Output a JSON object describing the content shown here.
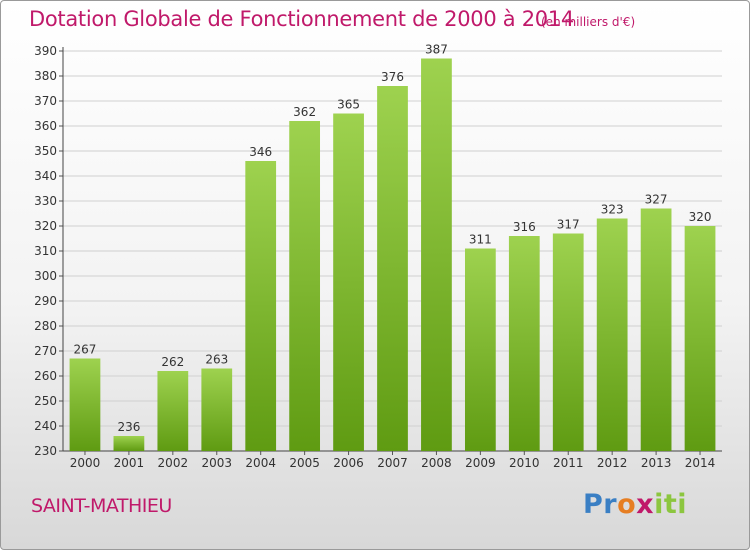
{
  "title": "Dotation Globale de Fonctionnement de 2000 à 2014",
  "subtitle": "(en milliers d'€)",
  "commune": "SAINT-MATHIEU",
  "logo": {
    "text": "Proxiti",
    "parts": [
      "Pr",
      "o",
      "x",
      "iti"
    ]
  },
  "colors": {
    "title": "#c0196a",
    "bar_top": "#9ed24f",
    "bar_bottom": "#5f9b12",
    "grid": "#d0d0d0"
  },
  "chart_data": {
    "type": "bar",
    "categories": [
      "2000",
      "2001",
      "2002",
      "2003",
      "2004",
      "2005",
      "2006",
      "2007",
      "2008",
      "2009",
      "2010",
      "2011",
      "2012",
      "2013",
      "2014"
    ],
    "values": [
      267,
      236,
      262,
      263,
      346,
      362,
      365,
      376,
      387,
      311,
      316,
      317,
      323,
      327,
      320
    ],
    "yticks": [
      230,
      240,
      250,
      260,
      270,
      280,
      290,
      300,
      310,
      320,
      330,
      340,
      350,
      360,
      370,
      380,
      390
    ],
    "ylim": [
      230,
      390
    ],
    "grid": true
  }
}
